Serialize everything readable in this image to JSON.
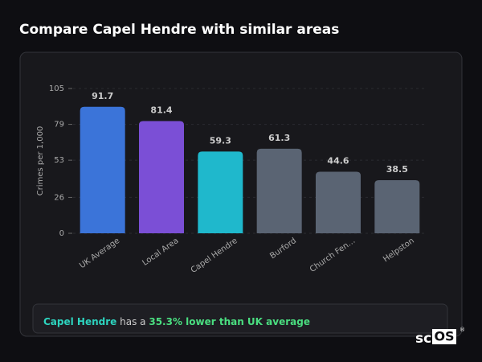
{
  "header": {
    "title": "Compare Capel Hendre with similar areas"
  },
  "chart_data": {
    "type": "bar",
    "y_label": "Crimes per 1,000",
    "categories": [
      "UK Average",
      "Local Area",
      "Capel Hendre",
      "Burford",
      "Church Fen…",
      "Helpston"
    ],
    "values": [
      91.7,
      81.4,
      59.3,
      61.3,
      44.6,
      38.5
    ],
    "colors": [
      "#3b74d9",
      "#7b4fd6",
      "#1fb8cc",
      "#5a6473",
      "#5a6473",
      "#5a6473"
    ],
    "ylim": [
      0,
      105
    ],
    "yticks": [
      0,
      26,
      53,
      79,
      105
    ],
    "grid": true
  },
  "summary": {
    "area": "Capel Hendre",
    "middle": "has a",
    "highlight": "35.3% lower than UK average"
  },
  "logo": {
    "prefix": "sc",
    "boxed": "OS",
    "mark": "®"
  }
}
